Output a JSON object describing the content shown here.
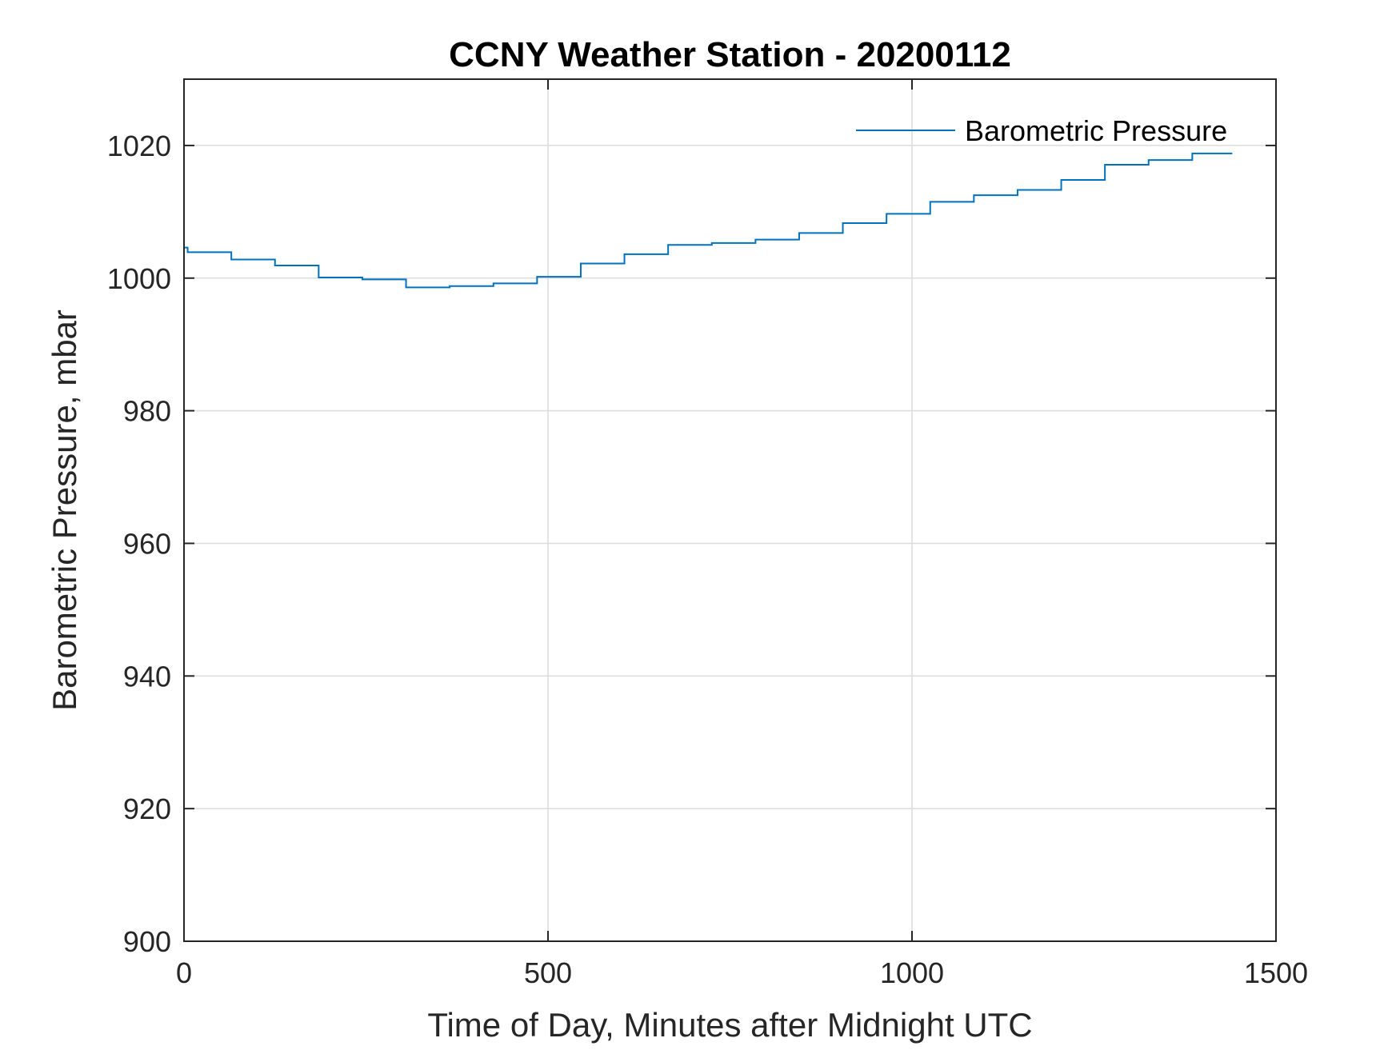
{
  "chart_data": {
    "type": "line",
    "title": "CCNY Weather Station - 20200112",
    "xlabel": "Time of Day, Minutes after Midnight UTC",
    "ylabel": "Barometric Pressure, mbar",
    "xlim": [
      0,
      1500
    ],
    "ylim": [
      900,
      1030
    ],
    "xticks": [
      0,
      500,
      1000,
      1500
    ],
    "xtick_labels": [
      "0",
      "500",
      "1000",
      "1500"
    ],
    "yticks": [
      900,
      920,
      940,
      960,
      980,
      1000,
      1020
    ],
    "ytick_labels": [
      "900",
      "920",
      "940",
      "960",
      "980",
      "1000",
      "1020"
    ],
    "grid": true,
    "legend_position": "top-right",
    "series": [
      {
        "name": "Barometric Pressure",
        "color": "#0072BD",
        "step": true,
        "x": [
          0,
          5,
          65,
          125,
          185,
          245,
          305,
          365,
          425,
          485,
          545,
          605,
          665,
          725,
          785,
          845,
          905,
          965,
          1025,
          1085,
          1145,
          1205,
          1265,
          1325,
          1385,
          1440
        ],
        "y": [
          1004.6,
          1003.9,
          1002.8,
          1001.9,
          1000.1,
          999.8,
          998.6,
          998.8,
          999.2,
          1000.2,
          1002.2,
          1003.6,
          1005.0,
          1005.3,
          1005.8,
          1006.8,
          1008.3,
          1009.7,
          1011.5,
          1012.5,
          1013.3,
          1014.8,
          1017.1,
          1017.8,
          1018.8,
          1018.8
        ]
      }
    ]
  }
}
